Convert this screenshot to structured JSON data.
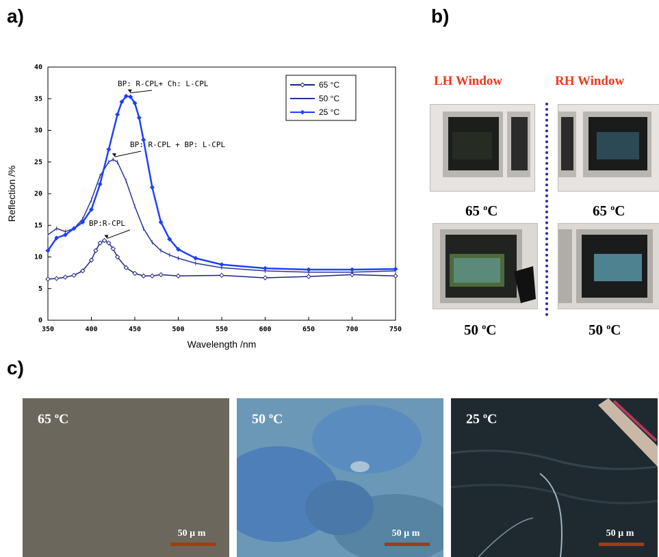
{
  "panels": {
    "a": "a)",
    "b": "b)",
    "c": "c)"
  },
  "chart_data": {
    "type": "line",
    "xlabel": "Wavelength /nm",
    "ylabel": "Reflection /%",
    "xlim": [
      350,
      750
    ],
    "ylim": [
      0,
      40
    ],
    "xticks": [
      "350",
      "400",
      "450",
      "500",
      "550",
      "600",
      "650",
      "700",
      "750"
    ],
    "yticks": [
      "0",
      "5",
      "10",
      "15",
      "20",
      "25",
      "30",
      "35",
      "40"
    ],
    "legend_position": "top-right",
    "series": [
      {
        "name": "65 °C",
        "color": "#1a237e",
        "marker": "open-diamond",
        "x": [
          350,
          360,
          370,
          380,
          390,
          400,
          405,
          410,
          415,
          420,
          425,
          430,
          440,
          450,
          460,
          470,
          480,
          500,
          550,
          600,
          650,
          700,
          750
        ],
        "y": [
          6.5,
          6.6,
          6.8,
          7.1,
          7.8,
          9.5,
          11.0,
          12.2,
          12.6,
          12.2,
          11.3,
          10.0,
          8.3,
          7.4,
          7.0,
          7.0,
          7.2,
          7.0,
          7.1,
          6.7,
          6.9,
          7.2,
          7.0
        ]
      },
      {
        "name": "50 °C",
        "color": "#283593",
        "marker": "small-cross",
        "x": [
          350,
          360,
          370,
          380,
          390,
          400,
          410,
          420,
          425,
          430,
          440,
          450,
          460,
          470,
          480,
          490,
          500,
          520,
          550,
          600,
          650,
          700,
          750
        ],
        "y": [
          13.5,
          14.5,
          14.0,
          14.5,
          16.0,
          19.0,
          22.8,
          25.0,
          25.4,
          25.0,
          22.0,
          18.0,
          14.5,
          12.3,
          11.0,
          10.3,
          9.8,
          9.0,
          8.3,
          7.8,
          7.6,
          7.6,
          7.8
        ]
      },
      {
        "name": "25 °C",
        "color": "#1f3fff",
        "marker": "filled-diamond",
        "x": [
          350,
          360,
          370,
          380,
          390,
          400,
          410,
          420,
          430,
          435,
          440,
          445,
          450,
          455,
          460,
          470,
          480,
          490,
          500,
          520,
          550,
          600,
          650,
          700,
          750
        ],
        "y": [
          11.0,
          13.0,
          13.5,
          14.5,
          15.5,
          17.5,
          21.5,
          27.0,
          32.5,
          34.5,
          35.4,
          35.3,
          34.3,
          32.0,
          28.5,
          21.0,
          15.5,
          12.8,
          11.2,
          9.8,
          8.8,
          8.2,
          8.0,
          8.0,
          8.1
        ]
      }
    ],
    "annotations": [
      {
        "text": "BP: R-CPL+ Ch: L-CPL",
        "x": 445,
        "y": 35.6
      },
      {
        "text": "BP: R-CPL + BP: L-CPL",
        "x": 427,
        "y": 25.5
      },
      {
        "text": "BP:R-CPL",
        "x": 418,
        "y": 12.6
      }
    ]
  },
  "windows": {
    "lh_title": "LH Window",
    "rh_title": "RH Window",
    "temp_65": "65",
    "temp_50": "50",
    "deg_o": "o",
    "deg_c": "C"
  },
  "micrographs": [
    {
      "temp": "65",
      "scale": "50 µ m",
      "bg": "#6e6a5e"
    },
    {
      "temp": "50",
      "scale": "50 µ m",
      "bg": "#5f8fb0"
    },
    {
      "temp": "25",
      "scale": "50 µ m",
      "bg": "#1f2a30"
    }
  ]
}
